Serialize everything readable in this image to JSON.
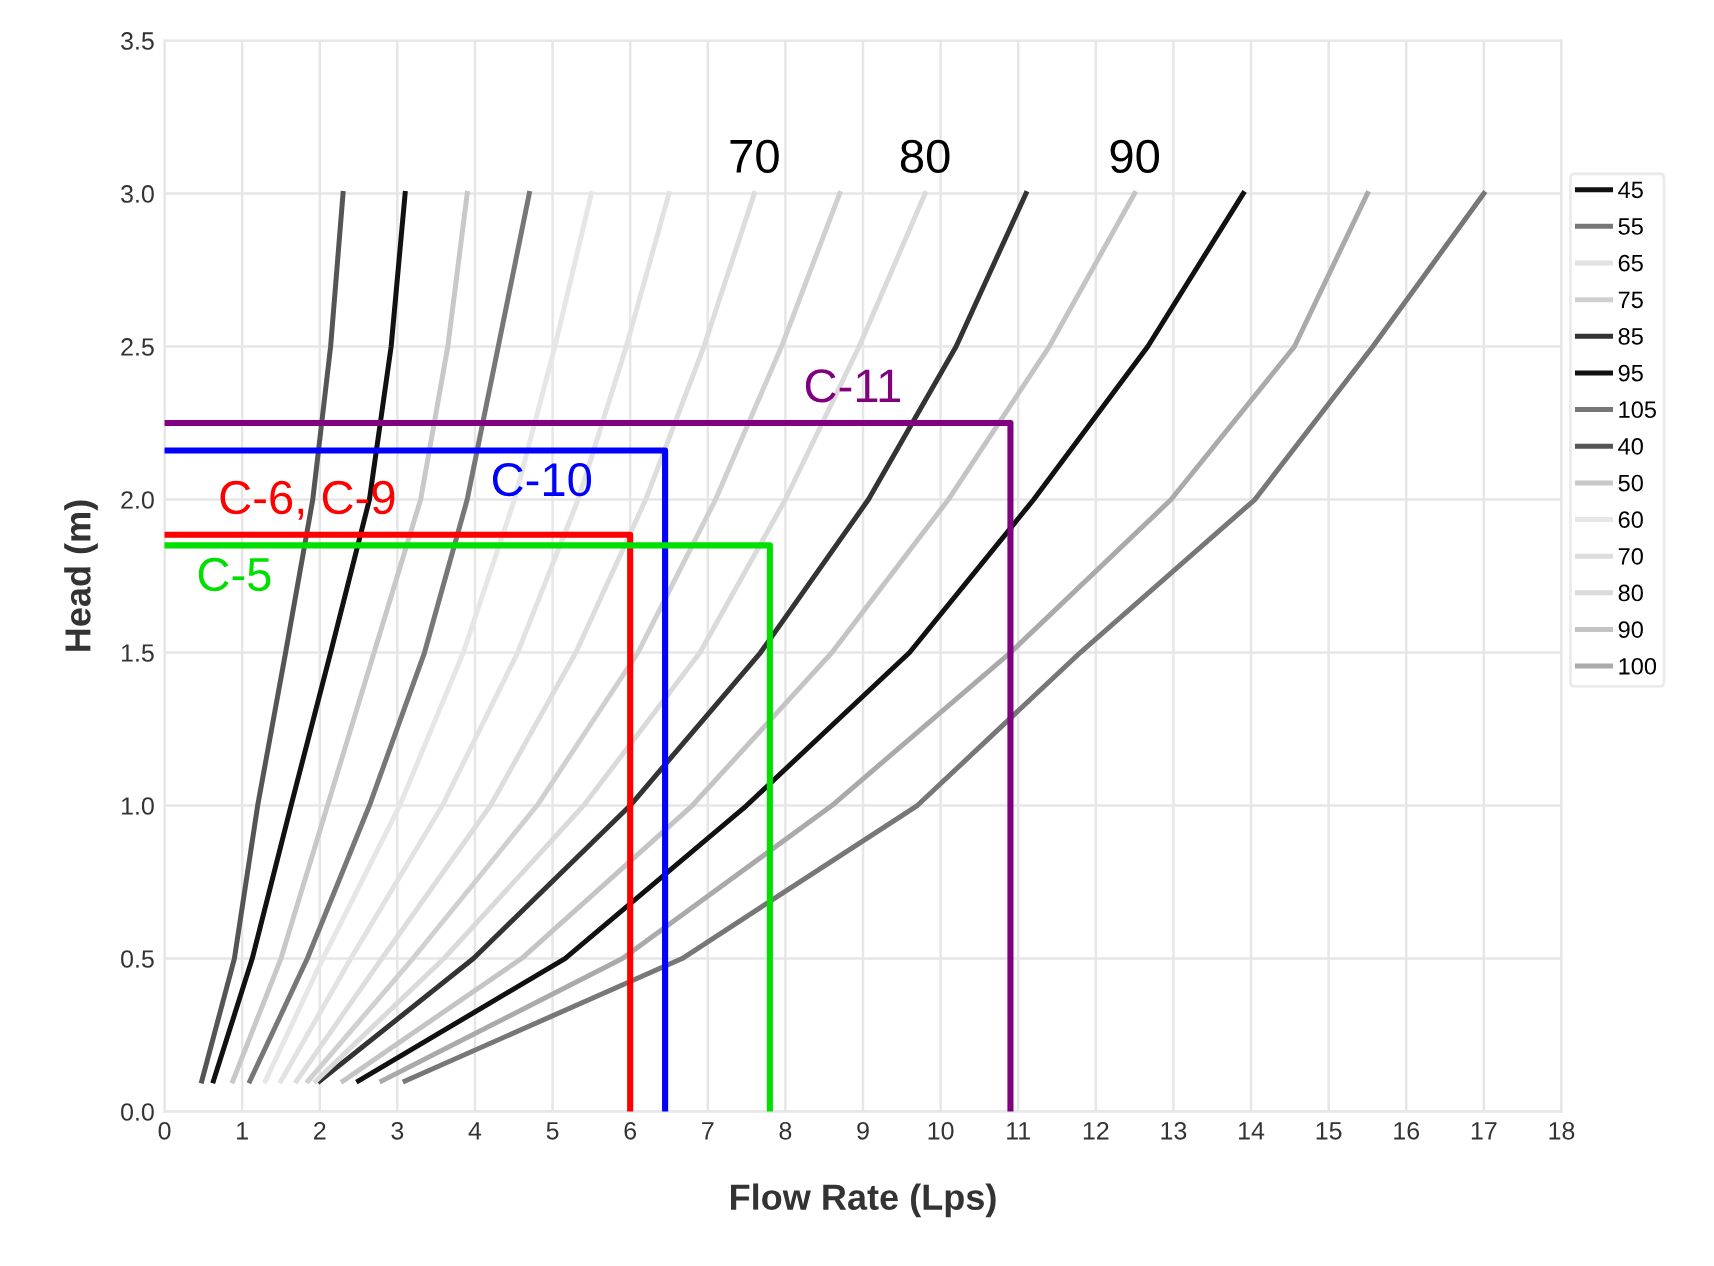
{
  "chart_data": {
    "type": "line",
    "xlabel": "Flow Rate (Lps)",
    "ylabel": "Head (m)",
    "xlim": [
      0,
      18
    ],
    "ylim": [
      0,
      3.5
    ],
    "xticks": [
      0,
      1,
      2,
      3,
      4,
      5,
      6,
      7,
      8,
      9,
      10,
      11,
      12,
      13,
      14,
      15,
      16,
      17,
      18
    ],
    "yticks": [
      {
        "value": 0,
        "label": "0.0"
      },
      0.5,
      {
        "value": 1,
        "label": "1.0"
      },
      1.5,
      {
        "value": 2,
        "label": "2.0"
      },
      2.5,
      {
        "value": 3,
        "label": "3.0"
      },
      3.5
    ],
    "grid": true,
    "legend": "right",
    "marker": "none",
    "line_style": "solid",
    "series": [
      {
        "name": "45",
        "color": "#111111",
        "x": [
          0.63,
          1.13,
          1.63,
          2.14,
          2.64,
          2.92,
          3.1
        ],
        "values": [
          0.1,
          0.5,
          1.0,
          1.5,
          2.0,
          2.5,
          3.0
        ]
      },
      {
        "name": "55",
        "color": "#777777",
        "x": [
          1.1,
          1.84,
          2.64,
          3.35,
          3.9,
          4.3,
          4.7
        ],
        "values": [
          0.1,
          0.5,
          1.0,
          1.5,
          2.0,
          2.5,
          3.0
        ]
      },
      {
        "name": "65",
        "color": "#e2e2e2",
        "x": [
          1.5,
          2.4,
          3.58,
          4.55,
          5.33,
          5.95,
          6.5
        ],
        "values": [
          0.1,
          0.5,
          1.0,
          1.5,
          2.0,
          2.5,
          3.0
        ]
      },
      {
        "name": "75",
        "color": "#d0d0d0",
        "x": [
          1.85,
          3.2,
          4.8,
          6.1,
          7.1,
          7.95,
          8.7
        ],
        "values": [
          0.1,
          0.5,
          1.0,
          1.5,
          2.0,
          2.5,
          3.0
        ]
      },
      {
        "name": "85",
        "color": "#333333",
        "x": [
          2.0,
          3.98,
          6.0,
          7.68,
          9.07,
          10.2,
          11.1
        ],
        "values": [
          0.1,
          0.5,
          1.0,
          1.5,
          2.0,
          2.5,
          3.0
        ]
      },
      {
        "name": "95",
        "color": "#111111",
        "x": [
          2.5,
          5.16,
          7.5,
          9.6,
          11.2,
          12.67,
          13.9
        ],
        "values": [
          0.1,
          0.5,
          1.0,
          1.5,
          2.0,
          2.5,
          3.0
        ]
      },
      {
        "name": "105",
        "color": "#777777",
        "x": [
          3.1,
          6.67,
          9.7,
          11.8,
          14.05,
          15.57,
          17.0
        ],
        "values": [
          0.1,
          0.5,
          1.0,
          1.5,
          2.0,
          2.5,
          3.0
        ]
      },
      {
        "name": "40",
        "color": "#555555",
        "x": [
          0.48,
          0.9,
          1.2,
          1.56,
          1.91,
          2.14,
          2.3
        ],
        "values": [
          0.1,
          0.5,
          1.0,
          1.5,
          2.0,
          2.5,
          3.0
        ]
      },
      {
        "name": "50",
        "color": "#c8c8c8",
        "x": [
          0.88,
          1.5,
          2.1,
          2.7,
          3.3,
          3.65,
          3.9
        ],
        "values": [
          0.1,
          0.5,
          1.0,
          1.5,
          2.0,
          2.5,
          3.0
        ]
      },
      {
        "name": "60",
        "color": "#e6e6e6",
        "x": [
          1.3,
          2.04,
          3.03,
          3.85,
          4.51,
          5.03,
          5.5
        ],
        "values": [
          0.1,
          0.5,
          1.0,
          1.5,
          2.0,
          2.5,
          3.0
        ]
      },
      {
        "name": "70",
        "color": "#dddddd",
        "x": [
          1.7,
          2.8,
          4.2,
          5.3,
          6.2,
          6.95,
          7.6
        ],
        "values": [
          0.1,
          0.5,
          1.0,
          1.5,
          2.0,
          2.5,
          3.0
        ]
      },
      {
        "name": "80",
        "color": "#dadada",
        "x": [
          1.95,
          3.6,
          5.4,
          6.9,
          8.0,
          8.95,
          9.8
        ],
        "values": [
          0.1,
          0.5,
          1.0,
          1.5,
          2.0,
          2.5,
          3.0
        ]
      },
      {
        "name": "90",
        "color": "#c4c4c4",
        "x": [
          2.3,
          4.6,
          6.8,
          8.6,
          10.1,
          11.4,
          12.5
        ],
        "values": [
          0.1,
          0.5,
          1.0,
          1.5,
          2.0,
          2.5,
          3.0
        ]
      },
      {
        "name": "100",
        "color": "#aaaaaa",
        "x": [
          2.8,
          5.9,
          8.6,
          10.9,
          12.97,
          14.56,
          15.5
        ],
        "values": [
          0.1,
          0.5,
          1.0,
          1.5,
          2.0,
          2.5,
          3.0
        ]
      },
      {
        "color": "#ff0000",
        "x": [
          0,
          6.0,
          6.0
        ],
        "values": [
          1.885,
          1.885,
          0
        ]
      },
      {
        "color": "#0000ff",
        "x": [
          0,
          6.45,
          6.45
        ],
        "values": [
          2.16,
          2.16,
          0
        ]
      },
      {
        "color": "#00e000",
        "x": [
          0,
          7.8,
          7.8
        ],
        "values": [
          1.85,
          1.85,
          0
        ]
      },
      {
        "color": "#800080",
        "x": [
          0,
          10.9,
          10.9
        ],
        "values": [
          2.25,
          2.25,
          0
        ]
      }
    ],
    "annotations": [
      {
        "text": "C-6, C-9",
        "x": 1.84,
        "y": 1.885
      },
      {
        "text": "C-10",
        "x": 4.86,
        "y": 2.16
      },
      {
        "text": "C-5",
        "x": 0.9,
        "y": 1.85
      },
      {
        "text": "C-11",
        "x": 8.87,
        "y": 2.25
      },
      {
        "text": "70",
        "x": 7.6,
        "y": 3.0
      },
      {
        "text": "80",
        "x": 9.8,
        "y": 3.0
      },
      {
        "text": "90",
        "x": 12.5,
        "y": 3.0
      }
    ]
  }
}
